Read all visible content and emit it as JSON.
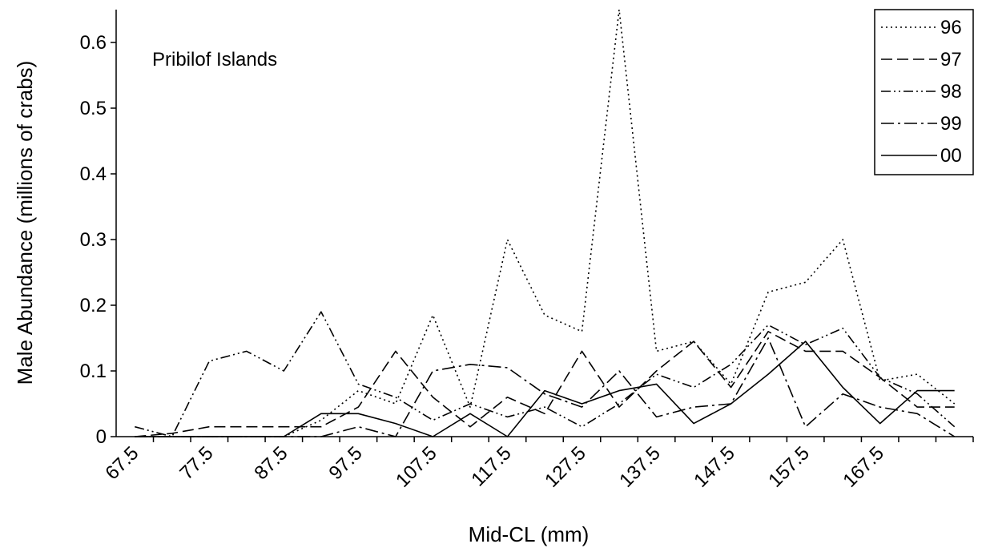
{
  "chart_data": {
    "type": "line",
    "title": "",
    "annotation": "Pribilof Islands",
    "xlabel": "Mid-CL (mm)",
    "ylabel": "Male Abundance (millions of crabs)",
    "ylim": [
      0,
      0.65
    ],
    "yticks": [
      0,
      0.1,
      0.2,
      0.3,
      0.4,
      0.5,
      0.6
    ],
    "ytick_labels": [
      "0",
      "0.1",
      "0.2",
      "0.3",
      "0.4",
      "0.5",
      "0.6"
    ],
    "x": [
      67.5,
      72.5,
      77.5,
      82.5,
      87.5,
      92.5,
      97.5,
      102.5,
      107.5,
      112.5,
      117.5,
      122.5,
      127.5,
      132.5,
      137.5,
      142.5,
      147.5,
      152.5,
      157.5,
      162.5,
      167.5,
      172.5,
      177.5
    ],
    "xtick_labels": [
      "67.5",
      "77.5",
      "87.5",
      "97.5",
      "107.5",
      "117.5",
      "127.5",
      "137.5",
      "147.5",
      "157.5",
      "167.5"
    ],
    "legend_position": "top-right",
    "grid": false,
    "series": [
      {
        "name": "96",
        "style": "dotted",
        "values": [
          0,
          0,
          0,
          0,
          0,
          0.025,
          0.07,
          0.05,
          0.185,
          0.045,
          0.3,
          0.185,
          0.16,
          0.65,
          0.13,
          0.145,
          0.08,
          0.22,
          0.235,
          0.3,
          0.085,
          0.095,
          0.05
        ]
      },
      {
        "name": "97",
        "style": "dashed",
        "values": [
          0,
          0.005,
          0.015,
          0.015,
          0.015,
          0.015,
          0.045,
          0.13,
          0.06,
          0.015,
          0.06,
          0.035,
          0.13,
          0.045,
          0.1,
          0.145,
          0.075,
          0.16,
          0.13,
          0.13,
          0.09,
          0.045,
          0.045
        ]
      },
      {
        "name": "98",
        "style": "dash-dot-dot",
        "values": [
          0.015,
          0,
          0.115,
          0.13,
          0.1,
          0.19,
          0.08,
          0.06,
          0.025,
          0.05,
          0.03,
          0.045,
          0.015,
          0.05,
          0.095,
          0.075,
          0.11,
          0.17,
          0.14,
          0.165,
          0.09,
          0.065,
          0.015
        ]
      },
      {
        "name": "99",
        "style": "dash-dot",
        "values": [
          0,
          0,
          0,
          0,
          0,
          0,
          0.015,
          0,
          0.1,
          0.11,
          0.105,
          0.065,
          0.045,
          0.1,
          0.03,
          0.045,
          0.05,
          0.15,
          0.015,
          0.065,
          0.045,
          0.035,
          0
        ]
      },
      {
        "name": "00",
        "style": "solid",
        "values": [
          0,
          0,
          0,
          0,
          0,
          0.035,
          0.035,
          0.02,
          0,
          0.035,
          0,
          0.07,
          0.05,
          0.07,
          0.08,
          0.02,
          0.05,
          0.095,
          0.145,
          0.075,
          0.02,
          0.07,
          0.07
        ]
      }
    ]
  }
}
